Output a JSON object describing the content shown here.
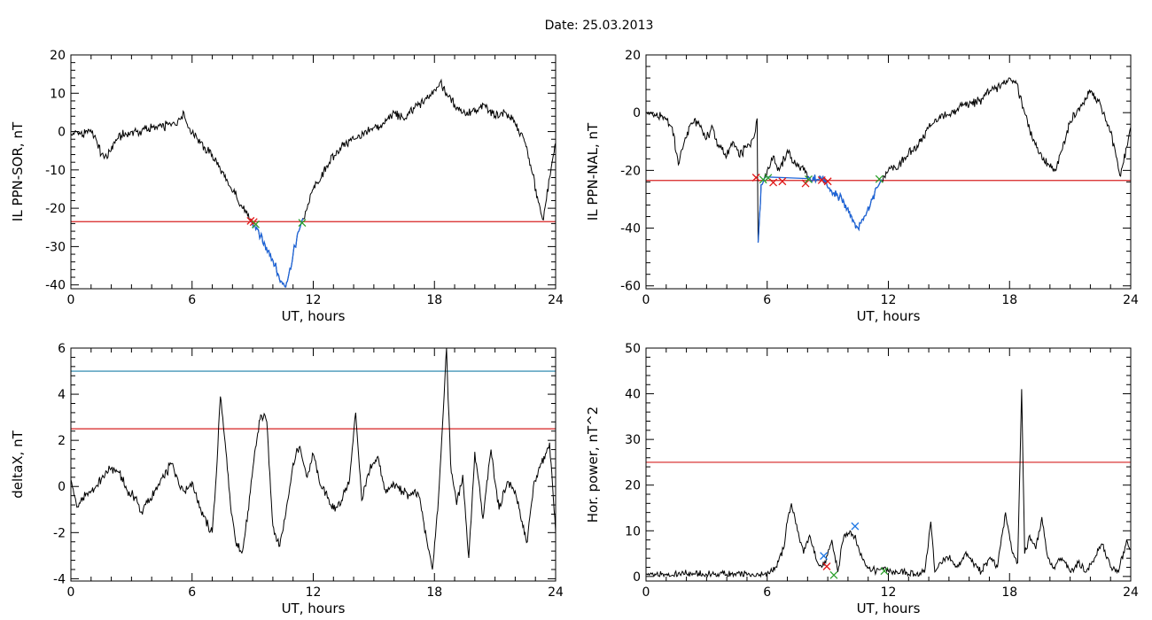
{
  "figure": {
    "title": "Date:  25.03.2013"
  },
  "colors": {
    "data": "#000000",
    "threshold": "#d62020",
    "threshold_upper": "#1a7fa8",
    "substorm": "#1e64d8",
    "marker_red": "#e01818",
    "marker_green": "#2ca02c",
    "marker_blue": "#1f77e4"
  },
  "chart_data": [
    {
      "id": "il-sor",
      "type": "line",
      "xlabel": "UT, hours",
      "ylabel": "IL PPN-SOR, nT",
      "xlim": [
        0,
        24
      ],
      "ylim": [
        -41,
        20
      ],
      "xticks": [
        0,
        6,
        12,
        18,
        24
      ],
      "yticks": [
        -40,
        -30,
        -20,
        -10,
        0,
        10,
        20
      ],
      "threshold": -23.5,
      "series_points": [
        [
          0,
          -1
        ],
        [
          0.3,
          0
        ],
        [
          0.6,
          -1
        ],
        [
          0.9,
          0.5
        ],
        [
          1.2,
          -1
        ],
        [
          1.5,
          -6
        ],
        [
          1.8,
          -7
        ],
        [
          2.1,
          -3
        ],
        [
          2.5,
          -1
        ],
        [
          3,
          0
        ],
        [
          3.5,
          0
        ],
        [
          4,
          1
        ],
        [
          4.5,
          1
        ],
        [
          5,
          2
        ],
        [
          5.3,
          3
        ],
        [
          5.6,
          5
        ],
        [
          5.8,
          1
        ],
        [
          6.2,
          -1
        ],
        [
          6.6,
          -4
        ],
        [
          7,
          -6
        ],
        [
          7.4,
          -10
        ],
        [
          7.8,
          -14
        ],
        [
          8.2,
          -17
        ],
        [
          8.6,
          -21
        ],
        [
          8.9,
          -23.5
        ],
        [
          9.2,
          -25
        ],
        [
          9.5,
          -29
        ],
        [
          9.8,
          -31
        ],
        [
          10.1,
          -35
        ],
        [
          10.4,
          -39
        ],
        [
          10.6,
          -40.5
        ],
        [
          10.8,
          -37
        ],
        [
          11.1,
          -30
        ],
        [
          11.4,
          -24
        ],
        [
          11.7,
          -20
        ],
        [
          12,
          -15
        ],
        [
          12.4,
          -12
        ],
        [
          12.8,
          -8
        ],
        [
          13.2,
          -5
        ],
        [
          13.6,
          -3
        ],
        [
          14,
          -2
        ],
        [
          14.5,
          -1
        ],
        [
          15,
          1
        ],
        [
          15.5,
          2
        ],
        [
          16,
          5
        ],
        [
          16.5,
          3
        ],
        [
          17,
          6
        ],
        [
          17.5,
          8
        ],
        [
          18,
          11
        ],
        [
          18.3,
          13
        ],
        [
          18.6,
          10
        ],
        [
          19,
          7
        ],
        [
          19.5,
          5
        ],
        [
          20,
          5
        ],
        [
          20.5,
          7
        ],
        [
          21,
          4
        ],
        [
          21.5,
          5
        ],
        [
          22,
          2
        ],
        [
          22.5,
          -3
        ],
        [
          22.8,
          -10
        ],
        [
          23.1,
          -17
        ],
        [
          23.4,
          -23
        ],
        [
          23.7,
          -12
        ],
        [
          24,
          -3
        ]
      ],
      "substorm_interval": [
        8.9,
        11.5
      ],
      "markers": [
        {
          "x": 8.9,
          "y": -23.3,
          "color": "red"
        },
        {
          "x": 9.05,
          "y": -23.6,
          "color": "red"
        },
        {
          "x": 9.15,
          "y": -24.2,
          "color": "green"
        },
        {
          "x": 11.45,
          "y": -23.8,
          "color": "green"
        }
      ]
    },
    {
      "id": "il-nal",
      "type": "line",
      "xlabel": "UT, hours",
      "ylabel": "IL PPN-NAL, nT",
      "xlim": [
        0,
        24
      ],
      "ylim": [
        -61,
        20
      ],
      "xticks": [
        0,
        6,
        12,
        18,
        24
      ],
      "yticks": [
        -60,
        -40,
        -20,
        0,
        20
      ],
      "threshold": -23.5,
      "series_points": [
        [
          0,
          0
        ],
        [
          0.5,
          -1
        ],
        [
          1,
          -2
        ],
        [
          1.3,
          -5
        ],
        [
          1.6,
          -18
        ],
        [
          1.9,
          -10
        ],
        [
          2.2,
          -4
        ],
        [
          2.6,
          -3
        ],
        [
          3,
          -9
        ],
        [
          3.3,
          -5
        ],
        [
          3.6,
          -12
        ],
        [
          4,
          -15
        ],
        [
          4.3,
          -10
        ],
        [
          4.6,
          -15
        ],
        [
          5,
          -12
        ],
        [
          5.3,
          -9
        ],
        [
          5.5,
          -2
        ],
        [
          5.55,
          -45
        ],
        [
          5.7,
          -25
        ],
        [
          6,
          -20
        ],
        [
          6.3,
          -15
        ],
        [
          6.6,
          -20
        ],
        [
          7,
          -13
        ],
        [
          7.4,
          -18
        ],
        [
          7.8,
          -20
        ],
        [
          8.2,
          -24
        ],
        [
          8.6,
          -22
        ],
        [
          9,
          -26
        ],
        [
          9.5,
          -29
        ],
        [
          10,
          -33
        ],
        [
          10.3,
          -38
        ],
        [
          10.5,
          -40
        ],
        [
          10.8,
          -36
        ],
        [
          11.2,
          -30
        ],
        [
          11.6,
          -24
        ],
        [
          12,
          -20
        ],
        [
          12.5,
          -19
        ],
        [
          13,
          -14
        ],
        [
          13.5,
          -11
        ],
        [
          14,
          -5
        ],
        [
          14.5,
          -2
        ],
        [
          15,
          -1
        ],
        [
          15.5,
          2
        ],
        [
          16,
          3
        ],
        [
          16.5,
          4
        ],
        [
          17,
          7
        ],
        [
          17.5,
          9
        ],
        [
          18,
          12
        ],
        [
          18.3,
          11
        ],
        [
          18.6,
          4
        ],
        [
          19,
          -6
        ],
        [
          19.5,
          -14
        ],
        [
          20,
          -19
        ],
        [
          20.3,
          -20
        ],
        [
          20.7,
          -10
        ],
        [
          21,
          -3
        ],
        [
          21.5,
          2
        ],
        [
          22,
          7
        ],
        [
          22.4,
          4
        ],
        [
          22.8,
          -3
        ],
        [
          23.2,
          -12
        ],
        [
          23.5,
          -22
        ],
        [
          23.8,
          -12
        ],
        [
          24,
          -5
        ]
      ],
      "substorm_interval": [
        5.5,
        11.7
      ],
      "markers": [
        {
          "x": 5.45,
          "y": -22.5,
          "color": "red"
        },
        {
          "x": 5.8,
          "y": -23.2,
          "color": "green"
        },
        {
          "x": 6.05,
          "y": -22.6,
          "color": "green"
        },
        {
          "x": 6.3,
          "y": -24.2,
          "color": "red"
        },
        {
          "x": 6.75,
          "y": -23.8,
          "color": "red"
        },
        {
          "x": 7.9,
          "y": -24.5,
          "color": "red"
        },
        {
          "x": 8.05,
          "y": -23.1,
          "color": "green"
        },
        {
          "x": 8.7,
          "y": -23.4,
          "color": "red"
        },
        {
          "x": 9.0,
          "y": -23.8,
          "color": "red"
        },
        {
          "x": 11.55,
          "y": -23.0,
          "color": "green"
        }
      ]
    },
    {
      "id": "deltax",
      "type": "line",
      "xlabel": "UT, hours",
      "ylabel": "deltaX, nT",
      "xlim": [
        0,
        24
      ],
      "ylim": [
        -4.1,
        6
      ],
      "xticks": [
        0,
        6,
        12,
        18,
        24
      ],
      "yticks": [
        -4,
        -2,
        0,
        2,
        4,
        6
      ],
      "threshold": 2.5,
      "threshold_upper": 5,
      "series_points": [
        [
          0,
          0.3
        ],
        [
          0.3,
          -0.9
        ],
        [
          0.6,
          -0.5
        ],
        [
          1,
          -0.2
        ],
        [
          1.5,
          0.3
        ],
        [
          2,
          0.8
        ],
        [
          2.4,
          0.6
        ],
        [
          2.8,
          -0.2
        ],
        [
          3.2,
          -0.5
        ],
        [
          3.5,
          -1.1
        ],
        [
          3.9,
          -0.6
        ],
        [
          4.3,
          0
        ],
        [
          4.6,
          0.4
        ],
        [
          5,
          1
        ],
        [
          5.3,
          0.3
        ],
        [
          5.6,
          -0.2
        ],
        [
          6,
          0.2
        ],
        [
          6.4,
          -0.9
        ],
        [
          6.8,
          -1.7
        ],
        [
          7,
          -2
        ],
        [
          7.2,
          0.5
        ],
        [
          7.4,
          3.9
        ],
        [
          7.6,
          2.2
        ],
        [
          7.9,
          -0.8
        ],
        [
          8.2,
          -2.6
        ],
        [
          8.5,
          -2.8
        ],
        [
          8.8,
          -1
        ],
        [
          9.1,
          1.5
        ],
        [
          9.4,
          3.1
        ],
        [
          9.7,
          2.8
        ],
        [
          10,
          -1.7
        ],
        [
          10.3,
          -2.6
        ],
        [
          10.6,
          -1.4
        ],
        [
          11,
          1
        ],
        [
          11.3,
          1.7
        ],
        [
          11.7,
          0.4
        ],
        [
          12,
          1.4
        ],
        [
          12.3,
          0.2
        ],
        [
          12.7,
          -0.5
        ],
        [
          13,
          -1
        ],
        [
          13.4,
          -0.6
        ],
        [
          13.8,
          0.3
        ],
        [
          14.1,
          3.2
        ],
        [
          14.4,
          -0.6
        ],
        [
          14.8,
          0.7
        ],
        [
          15.2,
          1.3
        ],
        [
          15.6,
          -0.3
        ],
        [
          16,
          0.1
        ],
        [
          16.4,
          -0.2
        ],
        [
          16.8,
          -0.4
        ],
        [
          17.2,
          -0.3
        ],
        [
          17.6,
          -2.2
        ],
        [
          17.9,
          -3.6
        ],
        [
          18.2,
          -0.5
        ],
        [
          18.6,
          6
        ],
        [
          18.8,
          1
        ],
        [
          19.1,
          -0.8
        ],
        [
          19.4,
          0.5
        ],
        [
          19.7,
          -3.1
        ],
        [
          20,
          1.5
        ],
        [
          20.4,
          -1.4
        ],
        [
          20.8,
          1.6
        ],
        [
          21.2,
          -1
        ],
        [
          21.6,
          0.2
        ],
        [
          22,
          -0.2
        ],
        [
          22.3,
          -1.5
        ],
        [
          22.6,
          -2.4
        ],
        [
          22.9,
          0
        ],
        [
          23.3,
          1
        ],
        [
          23.7,
          1.9
        ],
        [
          24,
          -2
        ]
      ]
    },
    {
      "id": "hor-power",
      "type": "line",
      "xlabel": "UT, hours",
      "ylabel": "Hor. power, nT^2",
      "xlim": [
        0,
        24
      ],
      "ylim": [
        -1,
        50
      ],
      "xticks": [
        0,
        6,
        12,
        18,
        24
      ],
      "yticks": [
        0,
        10,
        20,
        30,
        40,
        50
      ],
      "threshold": 25,
      "series_points": [
        [
          0,
          0.5
        ],
        [
          1,
          0.3
        ],
        [
          2,
          0.6
        ],
        [
          3,
          0.4
        ],
        [
          4,
          0.5
        ],
        [
          5,
          0.3
        ],
        [
          6,
          0.8
        ],
        [
          6.4,
          2
        ],
        [
          6.8,
          6
        ],
        [
          7,
          12
        ],
        [
          7.2,
          16
        ],
        [
          7.5,
          10
        ],
        [
          7.8,
          5
        ],
        [
          8.1,
          9
        ],
        [
          8.4,
          4
        ],
        [
          8.7,
          2
        ],
        [
          8.9,
          3
        ],
        [
          9.2,
          8
        ],
        [
          9.5,
          1
        ],
        [
          9.8,
          9
        ],
        [
          10.1,
          10
        ],
        [
          10.4,
          8
        ],
        [
          10.7,
          4
        ],
        [
          11,
          2
        ],
        [
          11.4,
          1
        ],
        [
          11.8,
          2
        ],
        [
          12.2,
          0.5
        ],
        [
          12.6,
          1
        ],
        [
          13,
          0.5
        ],
        [
          13.4,
          0.6
        ],
        [
          13.8,
          1
        ],
        [
          14.1,
          12
        ],
        [
          14.3,
          1
        ],
        [
          14.6,
          3
        ],
        [
          15,
          4
        ],
        [
          15.4,
          2
        ],
        [
          15.8,
          5
        ],
        [
          16.2,
          3
        ],
        [
          16.6,
          1
        ],
        [
          17,
          4
        ],
        [
          17.4,
          2
        ],
        [
          17.8,
          14
        ],
        [
          18.1,
          6
        ],
        [
          18.4,
          3
        ],
        [
          18.6,
          41
        ],
        [
          18.75,
          5
        ],
        [
          19,
          9
        ],
        [
          19.3,
          6
        ],
        [
          19.6,
          13
        ],
        [
          19.9,
          4
        ],
        [
          20.2,
          2
        ],
        [
          20.6,
          4
        ],
        [
          21,
          1
        ],
        [
          21.4,
          3
        ],
        [
          21.8,
          1
        ],
        [
          22.2,
          4
        ],
        [
          22.6,
          7
        ],
        [
          23,
          2
        ],
        [
          23.4,
          1
        ],
        [
          23.8,
          8
        ],
        [
          24,
          6
        ]
      ],
      "markers": [
        {
          "x": 8.8,
          "y": 4.5,
          "color": "blue"
        },
        {
          "x": 8.95,
          "y": 2.2,
          "color": "red"
        },
        {
          "x": 9.3,
          "y": 0.3,
          "color": "green"
        },
        {
          "x": 10.35,
          "y": 11,
          "color": "blue"
        },
        {
          "x": 11.8,
          "y": 1.2,
          "color": "green"
        }
      ]
    }
  ]
}
